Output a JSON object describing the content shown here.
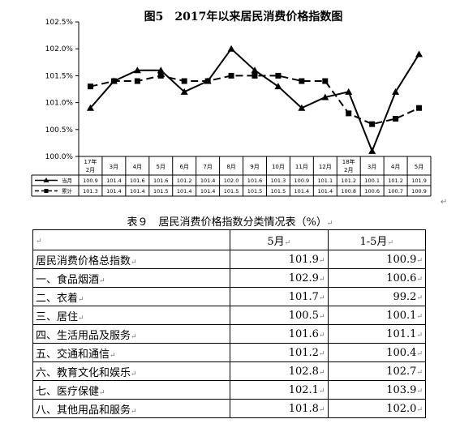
{
  "chart_data": {
    "type": "line",
    "title": "图5　2017年以来居民消费价格指数图",
    "categories": [
      "17年2月",
      "3月",
      "4月",
      "5月",
      "6月",
      "7月",
      "8月",
      "9月",
      "10月",
      "11月",
      "12月",
      "18年2月",
      "3月",
      "4月",
      "5月"
    ],
    "series": [
      {
        "name": "当月",
        "values": [
          100.9,
          101.4,
          101.6,
          101.6,
          101.2,
          101.4,
          102.0,
          101.6,
          101.3,
          100.9,
          101.1,
          101.2,
          100.1,
          101.2,
          101.9
        ]
      },
      {
        "name": "累计",
        "values": [
          101.3,
          101.4,
          101.4,
          101.5,
          101.4,
          101.4,
          101.5,
          101.5,
          101.5,
          101.4,
          101.4,
          100.8,
          100.6,
          100.7,
          100.9
        ]
      }
    ],
    "yticks": [
      "100.0%",
      "100.5%",
      "101.0%",
      "101.5%",
      "102.0%",
      "102.5%"
    ],
    "ylim": [
      100.0,
      102.5
    ],
    "grid": false,
    "legend": "data-table-below-axis"
  },
  "return_marks": {
    "after_chart": "↵",
    "caption": "↵",
    "cell": "↵"
  },
  "table": {
    "caption": "表９　居民消费价格指数分类情况表（%）",
    "headers": [
      "",
      "5月",
      "1-5月"
    ],
    "rows": [
      {
        "name": "居民消费价格总指数",
        "may": "101.9",
        "ytd": "100.9"
      },
      {
        "name": "一、食品烟酒",
        "may": "102.9",
        "ytd": "100.6"
      },
      {
        "name": "二、衣着",
        "may": "101.7",
        "ytd": "99.2"
      },
      {
        "name": "三、居住",
        "may": "100.5",
        "ytd": "100.1"
      },
      {
        "name": "四、生活用品及服务",
        "may": "101.6",
        "ytd": "101.1"
      },
      {
        "name": "五、交通和通信",
        "may": "101.2",
        "ytd": "100.4"
      },
      {
        "name": "六、教育文化和娱乐",
        "may": "102.8",
        "ytd": "102.7"
      },
      {
        "name": "七、医疗保健",
        "may": "102.1",
        "ytd": "103.9"
      },
      {
        "name": "八、其他用品和服务",
        "may": "101.8",
        "ytd": "102.0"
      }
    ]
  }
}
